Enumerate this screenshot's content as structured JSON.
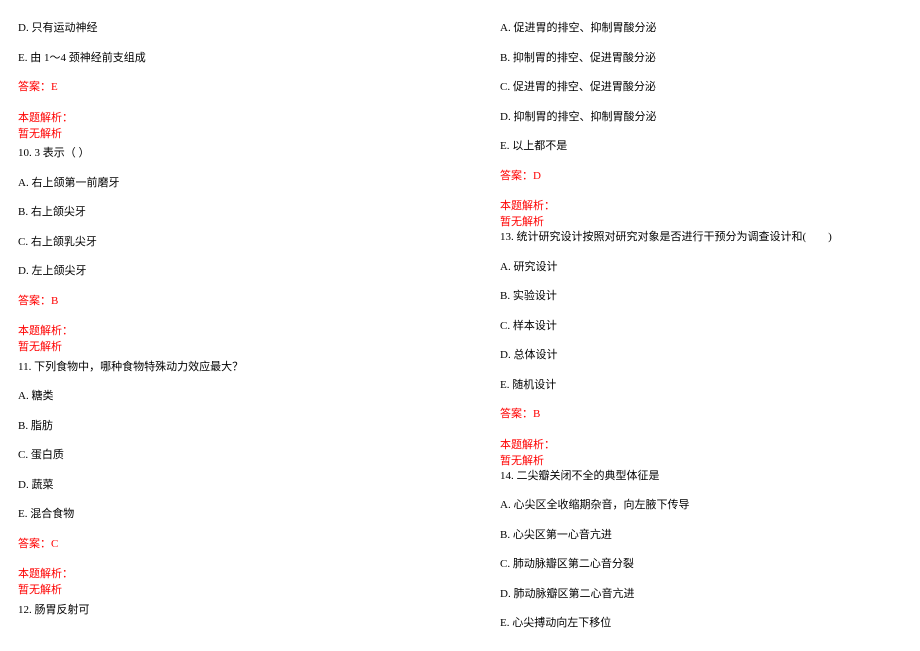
{
  "left": {
    "q9": {
      "optD": "D. 只有运动神经",
      "optE": "E. 由 1～4 颈神经前支组成",
      "answer": "答案：E",
      "explainTitle": "本题解析：",
      "explainBody": "暂无解析"
    },
    "q10": {
      "stem": "10. 3 表示（ ）",
      "optA": "A. 右上颌第一前磨牙",
      "optB": "B. 右上颌尖牙",
      "optC": "C. 右上颌乳尖牙",
      "optD": "D. 左上颌尖牙",
      "answer": "答案：B",
      "explainTitle": "本题解析：",
      "explainBody": "暂无解析"
    },
    "q11": {
      "stem": "11. 下列食物中，哪种食物特殊动力效应最大？",
      "optA": "A. 糖类",
      "optB": "B. 脂肪",
      "optC": "C. 蛋白质",
      "optD": "D. 蔬菜",
      "optE": "E. 混合食物",
      "answer": "答案：C",
      "explainTitle": "本题解析：",
      "explainBody": "暂无解析"
    },
    "q12": {
      "stem": "12. 肠胃反射可"
    }
  },
  "right": {
    "q12opts": {
      "optA": "A. 促进胃的排空、抑制胃酸分泌",
      "optB": "B. 抑制胃的排空、促进胃酸分泌",
      "optC": "C. 促进胃的排空、促进胃酸分泌",
      "optD": "D. 抑制胃的排空、抑制胃酸分泌",
      "optE": "E. 以上都不是",
      "answer": "答案：D",
      "explainTitle": "本题解析：",
      "explainBody": "暂无解析"
    },
    "q13": {
      "stem": "13. 统计研究设计按照对研究对象是否进行干预分为调查设计和(　　)",
      "optA": "A. 研究设计",
      "optB": "B. 实验设计",
      "optC": "C. 样本设计",
      "optD": "D. 总体设计",
      "optE": "E. 随机设计",
      "answer": "答案：B",
      "explainTitle": "本题解析：",
      "explainBody": "暂无解析"
    },
    "q14": {
      "stem": "14. 二尖瓣关闭不全的典型体征是",
      "optA": "A. 心尖区全收缩期杂音，向左腋下传导",
      "optB": "B. 心尖区第一心音亢进",
      "optC": "C. 肺动脉瓣区第二心音分裂",
      "optD": "D. 肺动脉瓣区第二心音亢进",
      "optE": "E. 心尖搏动向左下移位"
    }
  }
}
